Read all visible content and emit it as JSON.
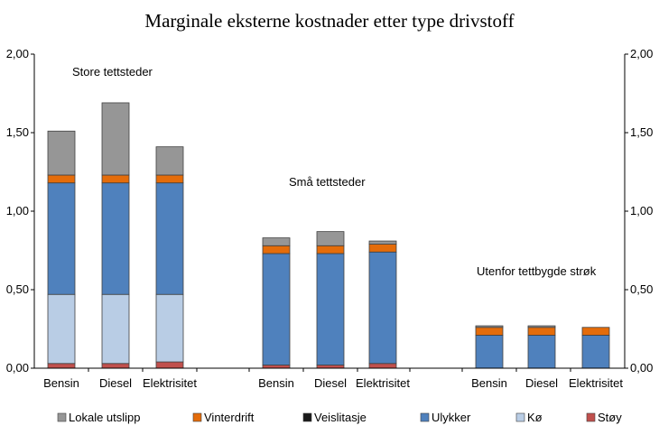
{
  "chart_data": {
    "type": "bar",
    "stacked": true,
    "title": "Marginale eksterne kostnader etter type drivstoff",
    "xlabel": "",
    "ylabel": "",
    "ylim": [
      0,
      2
    ],
    "y_ticks": [
      "0,00",
      "0,50",
      "1,00",
      "1,50",
      "2,00"
    ],
    "secondary_y_ticks": [
      "0,00",
      "0,50",
      "1,00",
      "1,50",
      "2,00"
    ],
    "grid": false,
    "legend_position": "bottom",
    "groups": [
      {
        "label": "Store tettsteder",
        "categories": [
          "Bensin",
          "Diesel",
          "Elektrisitet"
        ]
      },
      {
        "label": "Små tettsteder",
        "categories": [
          "Bensin",
          "Diesel",
          "Elektrisitet"
        ]
      },
      {
        "label": "Utenfor tettbygde strøk",
        "categories": [
          "Bensin",
          "Diesel",
          "Elektrisitet"
        ]
      }
    ],
    "categories": [
      "Bensin",
      "Diesel",
      "Elektrisitet",
      "Bensin",
      "Diesel",
      "Elektrisitet",
      "Bensin",
      "Diesel",
      "Elektrisitet"
    ],
    "series": [
      {
        "name": "Støy",
        "color": "#c0504d",
        "values": [
          0.03,
          0.03,
          0.04,
          0.02,
          0.02,
          0.03,
          0.0,
          0.0,
          0.0
        ]
      },
      {
        "name": "Kø",
        "color": "#b9cde5",
        "values": [
          0.44,
          0.44,
          0.43,
          0.0,
          0.0,
          0.0,
          0.0,
          0.0,
          0.0
        ]
      },
      {
        "name": "Ulykker",
        "color": "#4f81bd",
        "values": [
          0.71,
          0.71,
          0.71,
          0.71,
          0.71,
          0.71,
          0.21,
          0.21,
          0.21
        ]
      },
      {
        "name": "Veislitasje",
        "color": "#1a1a1a",
        "values": [
          0.0,
          0.0,
          0.0,
          0.0,
          0.0,
          0.0,
          0.0,
          0.0,
          0.0
        ]
      },
      {
        "name": "Vinterdrift",
        "color": "#e46c0a",
        "values": [
          0.05,
          0.05,
          0.05,
          0.05,
          0.05,
          0.05,
          0.05,
          0.05,
          0.05
        ]
      },
      {
        "name": "Lokale utslipp",
        "color": "#969696",
        "values": [
          0.28,
          0.46,
          0.18,
          0.05,
          0.09,
          0.02,
          0.01,
          0.01,
          0.0
        ]
      }
    ],
    "legend_order": [
      "Lokale utslipp",
      "Vinterdrift",
      "Veislitasje",
      "Ulykker",
      "Kø",
      "Støy"
    ]
  }
}
